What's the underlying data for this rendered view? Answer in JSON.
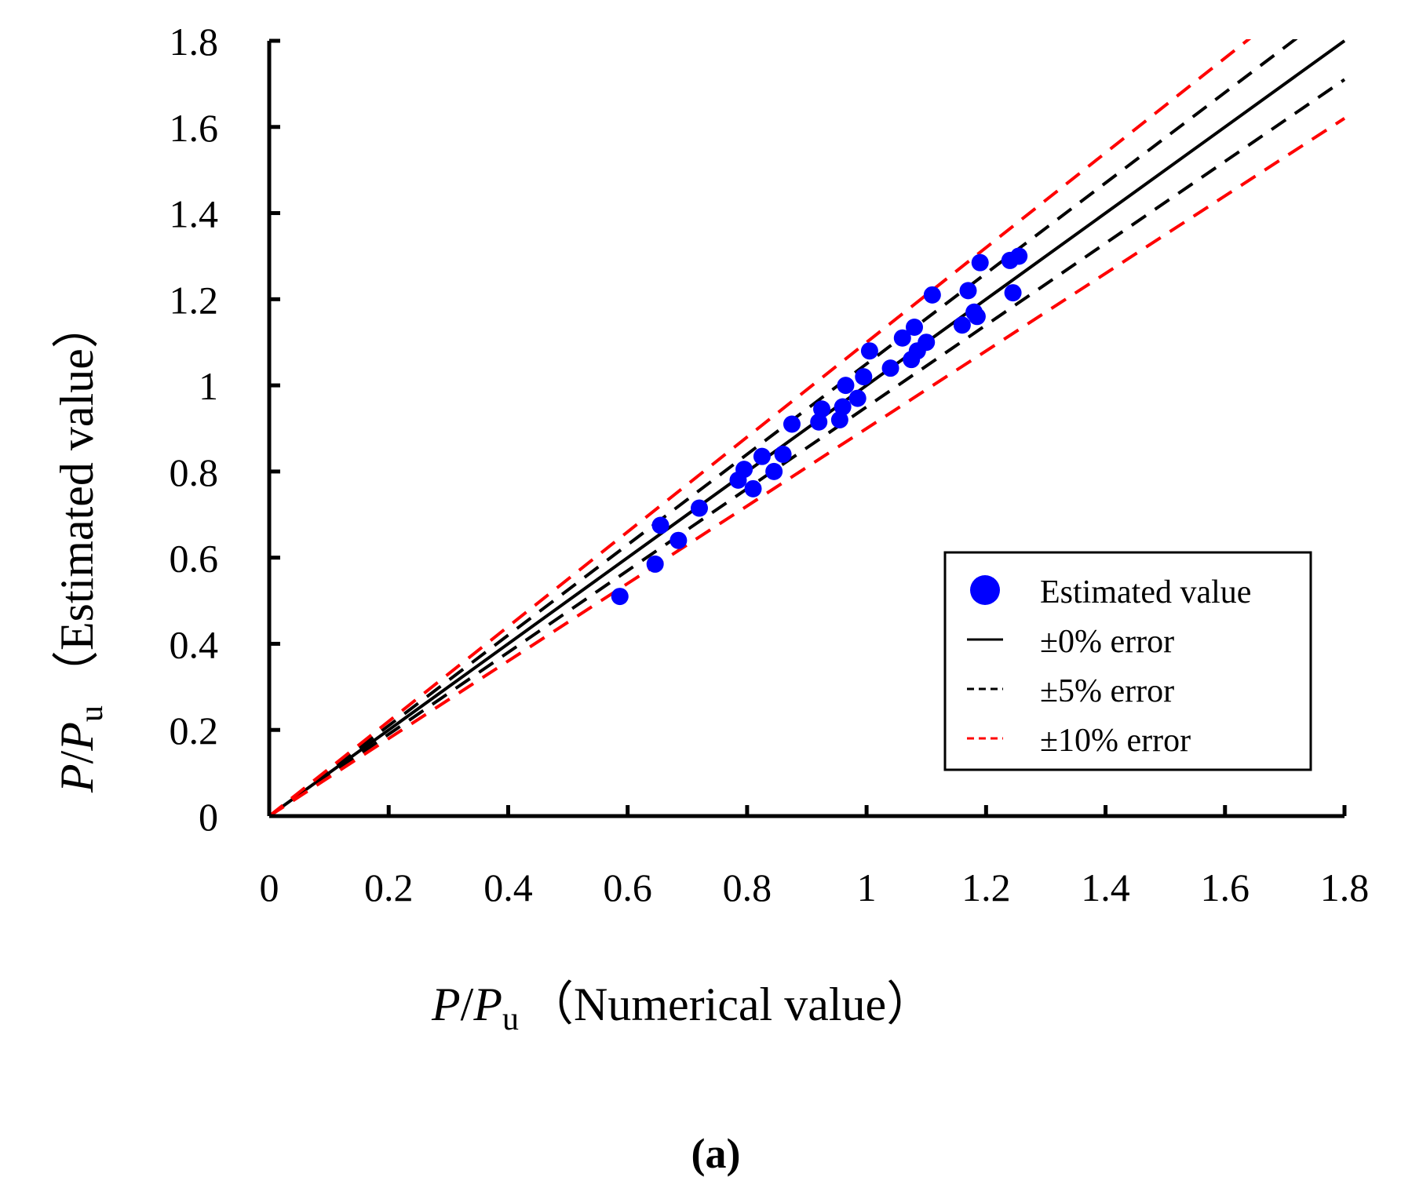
{
  "chart_data": {
    "type": "scatter",
    "title": "",
    "xlabel": {
      "italic_main": "P",
      "slash": "/",
      "italic_sub_base": "P",
      "subscript": "u",
      "suffix": "（Numerical value）"
    },
    "ylabel": {
      "italic_main": "P",
      "slash": "/",
      "italic_sub_base": "P",
      "subscript": "u",
      "suffix": "（Estimated value）"
    },
    "xlim": [
      0,
      1.8
    ],
    "ylim": [
      0,
      1.8
    ],
    "xticks": [
      "0",
      "0.2",
      "0.4",
      "0.6",
      "0.8",
      "1",
      "1.2",
      "1.4",
      "1.6",
      "1.8"
    ],
    "yticks": [
      "0",
      "0.2",
      "0.4",
      "0.6",
      "0.8",
      "1",
      "1.2",
      "1.4",
      "1.6",
      "1.8"
    ],
    "caption": "(a)",
    "legend_position": "bottom-right",
    "series": [
      {
        "name": "Estimated value",
        "kind": "points",
        "color": "#0000ff",
        "points": [
          [
            0.587,
            0.51
          ],
          [
            0.646,
            0.585
          ],
          [
            0.655,
            0.675
          ],
          [
            0.685,
            0.64
          ],
          [
            0.72,
            0.715
          ],
          [
            0.785,
            0.78
          ],
          [
            0.795,
            0.805
          ],
          [
            0.81,
            0.76
          ],
          [
            0.825,
            0.835
          ],
          [
            0.845,
            0.8
          ],
          [
            0.86,
            0.84
          ],
          [
            0.875,
            0.91
          ],
          [
            0.92,
            0.915
          ],
          [
            0.925,
            0.945
          ],
          [
            0.955,
            0.92
          ],
          [
            0.96,
            0.95
          ],
          [
            0.965,
            1.0
          ],
          [
            0.985,
            0.97
          ],
          [
            0.995,
            1.02
          ],
          [
            1.005,
            1.08
          ],
          [
            1.04,
            1.04
          ],
          [
            1.06,
            1.11
          ],
          [
            1.075,
            1.06
          ],
          [
            1.08,
            1.135
          ],
          [
            1.085,
            1.08
          ],
          [
            1.1,
            1.1
          ],
          [
            1.11,
            1.21
          ],
          [
            1.16,
            1.14
          ],
          [
            1.17,
            1.22
          ],
          [
            1.18,
            1.17
          ],
          [
            1.185,
            1.16
          ],
          [
            1.19,
            1.285
          ],
          [
            1.24,
            1.29
          ],
          [
            1.245,
            1.215
          ],
          [
            1.255,
            1.3
          ]
        ]
      },
      {
        "name": "±0% error",
        "kind": "line",
        "slope": 1.0,
        "color": "#000000",
        "dash": "solid"
      },
      {
        "name": "±5% error",
        "kind": "line",
        "slopes": [
          1.05,
          0.95
        ],
        "color": "#000000",
        "dash": "dashed"
      },
      {
        "name": "±10% error",
        "kind": "line",
        "slopes": [
          1.1,
          0.9
        ],
        "color": "#ff0000",
        "dash": "dashed"
      }
    ],
    "legend_labels": [
      "Estimated value",
      "±0% error",
      "±5% error",
      "±10% error"
    ]
  }
}
